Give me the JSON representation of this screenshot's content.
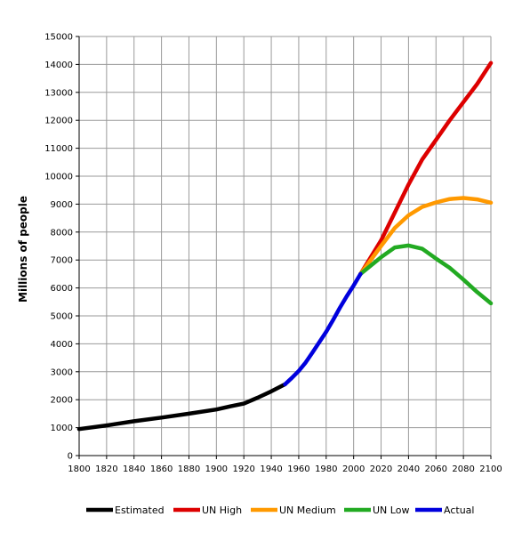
{
  "chart_data": {
    "type": "line",
    "title": "",
    "xlabel": "",
    "ylabel": "Millions of people",
    "xlim": [
      1800,
      2100
    ],
    "ylim": [
      0,
      15000
    ],
    "x_ticks": [
      "1800",
      "1820",
      "1840",
      "1860",
      "1880",
      "1900",
      "1920",
      "1940",
      "1960",
      "1980",
      "2000",
      "2020",
      "2040",
      "2060",
      "2080",
      "2100"
    ],
    "y_ticks": [
      "0",
      "1000",
      "2000",
      "3000",
      "4000",
      "5000",
      "6000",
      "7000",
      "8000",
      "9000",
      "10000",
      "11000",
      "12000",
      "13000",
      "14000",
      "15000"
    ],
    "grid": true,
    "legend_position": "bottom",
    "series": [
      {
        "name": "Estimated",
        "color": "#000000",
        "x": [
          1800,
          1820,
          1840,
          1860,
          1880,
          1900,
          1910,
          1920,
          1930,
          1940,
          1950
        ],
        "y": [
          950,
          1080,
          1230,
          1360,
          1500,
          1650,
          1760,
          1860,
          2070,
          2300,
          2550
        ]
      },
      {
        "name": "UN High",
        "color": "#dd0000",
        "x": [
          2005,
          2020,
          2030,
          2040,
          2050,
          2060,
          2070,
          2080,
          2090,
          2100
        ],
        "y": [
          6500,
          7700,
          8700,
          9700,
          10600,
          11300,
          12000,
          12650,
          13300,
          14050
        ]
      },
      {
        "name": "UN Medium",
        "color": "#ff9900",
        "x": [
          2005,
          2020,
          2030,
          2040,
          2050,
          2060,
          2070,
          2080,
          2090,
          2100
        ],
        "y": [
          6500,
          7500,
          8150,
          8600,
          8900,
          9060,
          9180,
          9220,
          9170,
          9050
        ]
      },
      {
        "name": "UN Low",
        "color": "#22aa22",
        "x": [
          2005,
          2020,
          2030,
          2040,
          2050,
          2060,
          2070,
          2080,
          2090,
          2100
        ],
        "y": [
          6500,
          7100,
          7450,
          7520,
          7400,
          7050,
          6720,
          6300,
          5850,
          5450
        ]
      },
      {
        "name": "Actual",
        "color": "#0000dd",
        "x": [
          1950,
          1955,
          1960,
          1965,
          1970,
          1975,
          1980,
          1985,
          1990,
          1995,
          2000,
          2005
        ],
        "y": [
          2550,
          2780,
          3030,
          3330,
          3690,
          4060,
          4430,
          4850,
          5290,
          5700,
          6090,
          6500
        ]
      }
    ]
  }
}
